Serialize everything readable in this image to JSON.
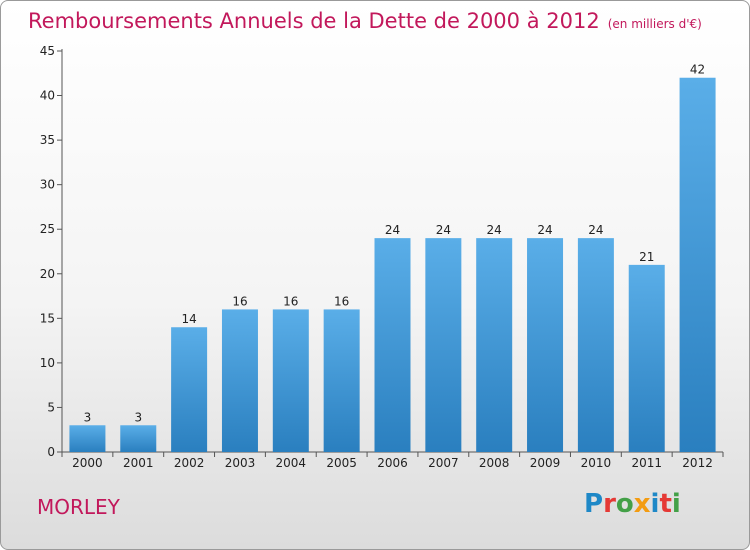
{
  "title": "Remboursements Annuels de la Dette de 2000 à 2012",
  "unit": "(en milliers d'€)",
  "place": "MORLEY",
  "logo": {
    "letters": [
      "P",
      "r",
      "o",
      "x",
      "i",
      "t",
      "i"
    ],
    "colors": [
      "#1e88c7",
      "#e53935",
      "#43a047",
      "#f39c12",
      "#1e88c7",
      "#e53935",
      "#43a047"
    ]
  },
  "colors": {
    "bar_light": "#5aaee8",
    "bar_dark": "#2a7fbf",
    "title": "#c2185b"
  },
  "chart_data": {
    "type": "bar",
    "title": "Remboursements Annuels de la Dette de 2000 à 2012",
    "categories": [
      "2000",
      "2001",
      "2002",
      "2003",
      "2004",
      "2005",
      "2006",
      "2007",
      "2008",
      "2009",
      "2010",
      "2011",
      "2012"
    ],
    "values": [
      3,
      3,
      14,
      16,
      16,
      16,
      24,
      24,
      24,
      24,
      24,
      21,
      42
    ],
    "yticks": [
      0,
      5,
      10,
      15,
      20,
      25,
      30,
      35,
      40,
      45
    ],
    "ylim": [
      0,
      45
    ],
    "grid": false,
    "xlabel": "",
    "ylabel": ""
  }
}
